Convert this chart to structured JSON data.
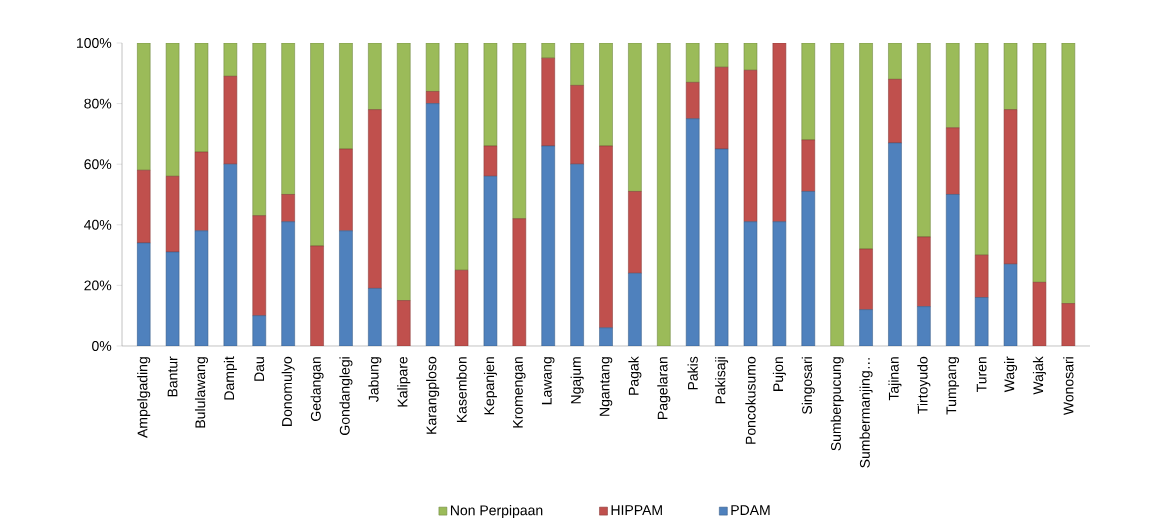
{
  "chart_data": {
    "type": "bar",
    "stacked": true,
    "categories": [
      "Ampelgading",
      "Bantur",
      "Bululawang",
      "Dampit",
      "Dau",
      "Donomulyo",
      "Gedangan",
      "Gondanglegi",
      "Jabung",
      "Kalipare",
      "Karangploso",
      "Kasembon",
      "Kepanjen",
      "Kromengan",
      "Lawang",
      "Ngajum",
      "Ngantang",
      "Pagak",
      "Pagelaran",
      "Pakis",
      "Pakisaji",
      "Poncokusumo",
      "Pujon",
      "Singosari",
      "Sumberpucung",
      "Sumbermanjing…",
      "Tajinan",
      "Tirtoyudo",
      "Tumpang",
      "Turen",
      "Wagir",
      "Wajak",
      "Wonosari"
    ],
    "series": [
      {
        "name": "PDAM",
        "color": "#4f81bd",
        "values": [
          34,
          31,
          38,
          60,
          10,
          41,
          0,
          38,
          19,
          0,
          80,
          0,
          56,
          0,
          66,
          60,
          6,
          24,
          0,
          75,
          65,
          41,
          41,
          51,
          0,
          12,
          67,
          13,
          50,
          16,
          27,
          0,
          0
        ]
      },
      {
        "name": "HIPPAM",
        "color": "#c0504d",
        "values": [
          24,
          25,
          26,
          29,
          33,
          9,
          33,
          27,
          59,
          15,
          4,
          25,
          10,
          42,
          29,
          26,
          60,
          27,
          0,
          12,
          27,
          50,
          59,
          17,
          0,
          20,
          21,
          23,
          22,
          14,
          51,
          21,
          14
        ]
      },
      {
        "name": "Non Perpipaan",
        "color": "#9bbb59",
        "values": [
          42,
          44,
          36,
          11,
          57,
          50,
          67,
          35,
          22,
          85,
          16,
          75,
          34,
          58,
          5,
          14,
          34,
          49,
          100,
          13,
          8,
          9,
          0,
          32,
          100,
          68,
          12,
          64,
          28,
          70,
          22,
          79,
          86
        ]
      }
    ],
    "ylim": [
      0,
      100
    ],
    "yticks": [
      {
        "value": 0,
        "label": "0%"
      },
      {
        "value": 20,
        "label": "20%"
      },
      {
        "value": 40,
        "label": "40%"
      },
      {
        "value": 60,
        "label": "60%"
      },
      {
        "value": 80,
        "label": "80%"
      },
      {
        "value": 100,
        "label": "100%"
      }
    ],
    "legend": "bottom"
  }
}
